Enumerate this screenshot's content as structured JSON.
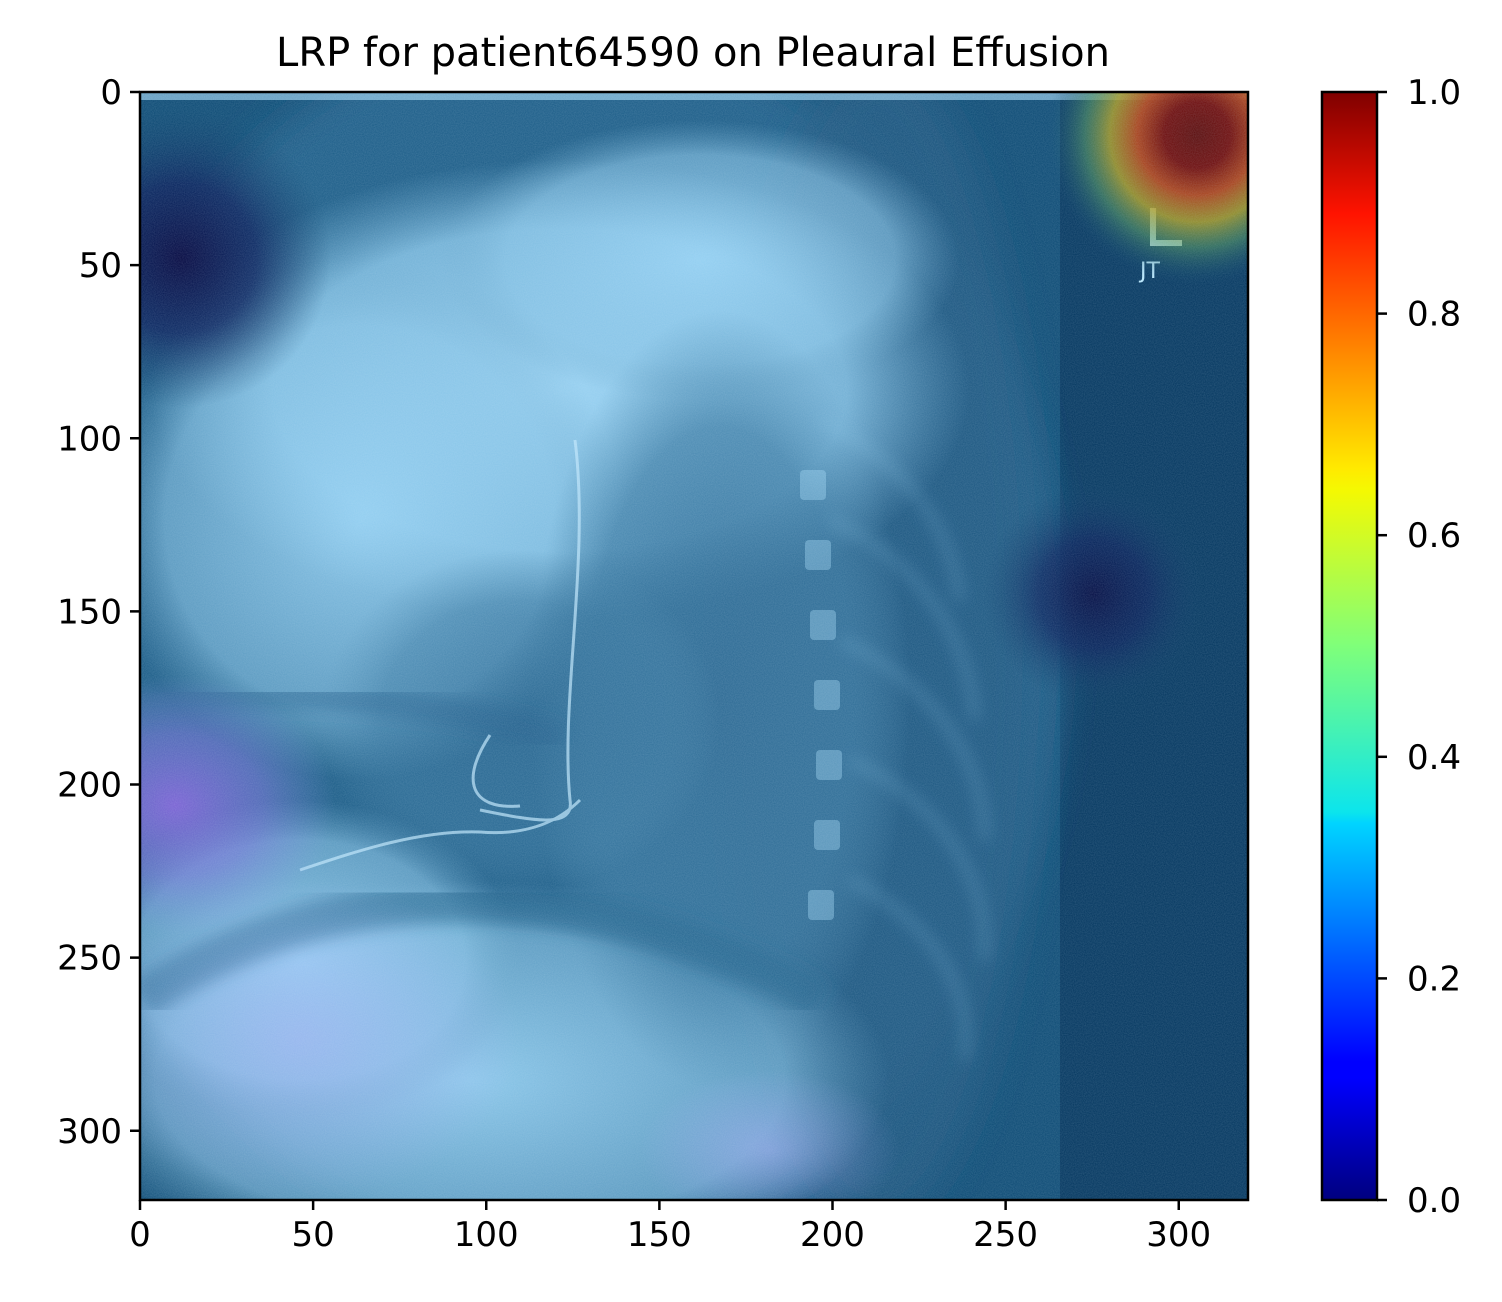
{
  "chart_data": {
    "type": "heatmap",
    "title": "LRP for patient64590 on Pleaural Effusion",
    "xlabel": "",
    "ylabel": "",
    "xlim": [
      0,
      320
    ],
    "ylim": [
      320,
      0
    ],
    "x_ticks": [
      0,
      50,
      100,
      150,
      200,
      250,
      300
    ],
    "y_ticks": [
      0,
      50,
      100,
      150,
      200,
      250,
      300
    ],
    "x_tick_labels": [
      "0",
      "50",
      "100",
      "150",
      "200",
      "250",
      "300"
    ],
    "y_tick_labels": [
      "0",
      "50",
      "100",
      "150",
      "200",
      "250",
      "300"
    ],
    "colormap": "jet",
    "colorbar": {
      "range": [
        0,
        1
      ],
      "ticks": [
        0.0,
        0.2,
        0.4,
        0.6,
        0.8,
        1.0
      ],
      "tick_labels": [
        "0.0",
        "0.2",
        "0.4",
        "0.6",
        "0.8",
        "1.0"
      ],
      "placement": "right"
    },
    "background": "chest x-ray, lateral view",
    "hotspots": [
      {
        "x": 305,
        "y": 12,
        "value": 1.0
      },
      {
        "x": 12,
        "y": 48,
        "value": 0.0
      },
      {
        "x": 275,
        "y": 145,
        "value": 0.05
      },
      {
        "x": 10,
        "y": 205,
        "value": 0.15
      }
    ]
  }
}
